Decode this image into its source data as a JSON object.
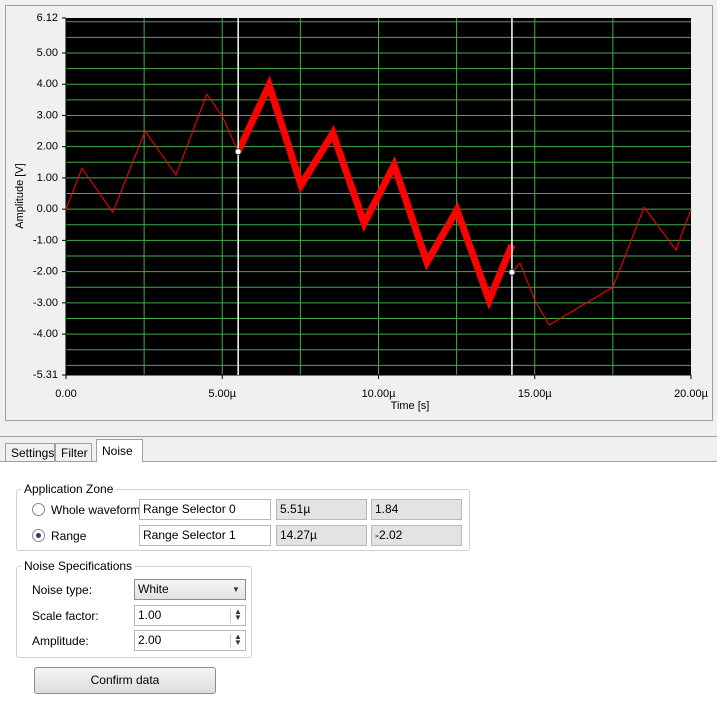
{
  "chart_data": {
    "type": "line",
    "xlabel": "Time [s]",
    "ylabel": "Amplitude [V]",
    "xlim": [
      0,
      2e-05
    ],
    "ylim": [
      -5.31,
      6.12
    ],
    "xticks": [
      {
        "value": 0,
        "label": "0.00"
      },
      {
        "value": 5e-06,
        "label": "5.00µ"
      },
      {
        "value": 1e-05,
        "label": "10.00µ"
      },
      {
        "value": 1.5e-05,
        "label": "15.00µ"
      },
      {
        "value": 2e-05,
        "label": "20.00µ"
      }
    ],
    "yticks": [
      {
        "value": 6.12,
        "label": "6.12"
      },
      {
        "value": 5,
        "label": "5.00"
      },
      {
        "value": 4,
        "label": "4.00"
      },
      {
        "value": 3,
        "label": "3.00"
      },
      {
        "value": 2,
        "label": "2.00"
      },
      {
        "value": 1,
        "label": "1.00"
      },
      {
        "value": 0,
        "label": "0.00"
      },
      {
        "value": -1,
        "label": "-1.00"
      },
      {
        "value": -2,
        "label": "-2.00"
      },
      {
        "value": -3,
        "label": "-3.00"
      },
      {
        "value": -4,
        "label": "-4.00"
      },
      {
        "value": -5.31,
        "label": "-5.31"
      }
    ],
    "xgrid": [
      2.5e-06,
      5e-06,
      7.5e-06,
      1e-05,
      1.25e-05,
      1.5e-05,
      1.75e-05
    ],
    "ygrid": [
      6,
      5.5,
      5,
      4.5,
      4,
      3.5,
      3,
      2.5,
      2,
      1.5,
      1,
      0.5,
      0,
      -0.5,
      -1,
      -1.5,
      -2,
      -2.5,
      -3,
      -3.5,
      -4,
      -4.5,
      -5
    ],
    "grid_color": "#3fae49",
    "background": "#000000",
    "series": [
      {
        "color": "#ff0000",
        "line_width": 1,
        "x": [
          0,
          5.1e-07,
          1.5e-06,
          2.53e-06,
          3.52e-06,
          4.51e-06,
          5e-06,
          5.51e-06
        ],
        "y": [
          0,
          1.31,
          -0.1,
          2.5,
          1.09,
          3.68,
          2.98,
          1.84
        ]
      },
      {
        "color": "#ff0000",
        "line_width": 7,
        "x": [
          5.51e-06,
          6.5e-06,
          7.52e-06,
          8.54e-06,
          9.54e-06,
          1.05e-05,
          1.155e-05,
          1.251e-05,
          1.354e-05,
          1.427e-05
        ],
        "y": [
          1.84,
          3.97,
          0.77,
          2.43,
          -0.45,
          1.41,
          -1.7,
          -0.03,
          -2.91,
          -1.15
        ]
      },
      {
        "color": "#ff0000",
        "line_width": 1,
        "x": [
          1.427e-05,
          1.453e-05,
          1.5e-05,
          1.546e-05,
          1.75e-05,
          1.85e-05,
          1.952e-05,
          2e-05
        ],
        "y": [
          -2.02,
          -1.73,
          -2.91,
          -3.71,
          -2.5,
          0.06,
          -1.31,
          0
        ]
      }
    ],
    "cursors": [
      {
        "x": 5.51e-06,
        "y": 1.84
      },
      {
        "x": 1.427e-05,
        "y": -2.02
      }
    ],
    "cursor_color": "#ffffff"
  },
  "tabs": [
    "Settings",
    "Filter",
    "Noise"
  ],
  "active_tab": 2,
  "application_zone": {
    "title": "Application Zone",
    "selected_option": 1,
    "rows": [
      {
        "option": "Whole waveform",
        "selector": "Range Selector 0",
        "x": "5.51µ",
        "y": "1.84"
      },
      {
        "option": "Range",
        "selector": "Range Selector 1",
        "x": "14.27µ",
        "y": "-2.02"
      }
    ]
  },
  "noise_specifications": {
    "title": "Noise Specifications",
    "fields": [
      {
        "label": "Noise type:",
        "value": "White"
      },
      {
        "label": "Scale factor:",
        "value": "1.00"
      },
      {
        "label": "Amplitude:",
        "value": "2.00"
      }
    ]
  },
  "button": "Confirm data"
}
